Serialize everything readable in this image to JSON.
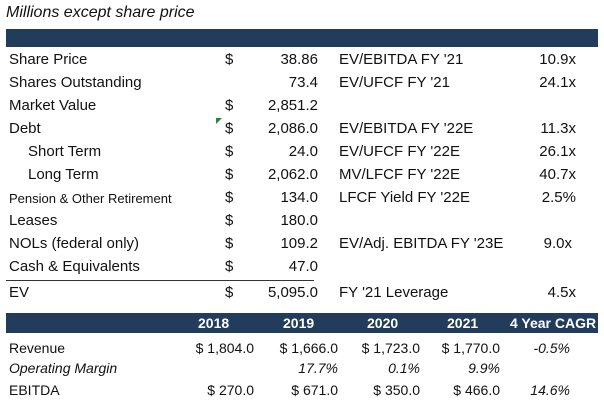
{
  "title": "Millions except share price",
  "left_rows": [
    {
      "label": "Share Price",
      "dollar": "$",
      "value": "38.86"
    },
    {
      "label": "Shares Outstanding",
      "dollar": "",
      "value": "73.4"
    },
    {
      "label": "Market Value",
      "dollar": "$",
      "value": "2,851.2"
    },
    {
      "label": "Debt",
      "dollar": "$",
      "value": "2,086.0"
    },
    {
      "label": "Short Term",
      "dollar": "$",
      "value": "24.0"
    },
    {
      "label": "Long Term",
      "dollar": "$",
      "value": "2,062.0"
    },
    {
      "label": "Pension & Other Retirement",
      "dollar": "$",
      "value": "134.0"
    },
    {
      "label": "Leases",
      "dollar": "$",
      "value": "180.0"
    },
    {
      "label": "NOLs (federal only)",
      "dollar": "$",
      "value": "109.2"
    },
    {
      "label": "Cash & Equivalents",
      "dollar": "$",
      "value": "47.0"
    },
    {
      "label": "EV",
      "dollar": "$",
      "value": "5,095.0"
    }
  ],
  "right_rows": [
    {
      "label": "EV/EBITDA FY '21",
      "value": "10.9x"
    },
    {
      "label": "EV/UFCF FY '21",
      "value": "24.1x"
    },
    {
      "label": "EV/EBITDA FY '22E",
      "value": "11.3x"
    },
    {
      "label": "EV/UFCF FY '22E",
      "value": "26.1x"
    },
    {
      "label": "MV/LFCF FY '22E",
      "value": "40.7x"
    },
    {
      "label": "LFCF Yield FY '22E",
      "value": "2.5%"
    },
    {
      "label": "EV/Adj. EBITDA FY '23E",
      "value": "9.0x"
    },
    {
      "label": "FY '21 Leverage",
      "value": "4.5x"
    }
  ],
  "table": {
    "headers": [
      "2018",
      "2019",
      "2020",
      "2021",
      "4 Year CAGR"
    ],
    "rows": [
      {
        "label": "Revenue",
        "cells": [
          "$ 1,804.0",
          "$ 1,666.0",
          "$ 1,723.0",
          "$ 1,770.0"
        ],
        "cagr": "-0.5%"
      },
      {
        "label": "Operating Margin",
        "cells": [
          "",
          "17.7%",
          "0.1%",
          "9.9%"
        ],
        "cagr": ""
      },
      {
        "label": "EBITDA",
        "cells": [
          "$ 270.0",
          "$ 671.0",
          "$ 350.0",
          "$ 466.0"
        ],
        "cagr": "14.6%"
      }
    ]
  },
  "colors": {
    "header_bg": "#223c5c",
    "flag": "#1f8a3a"
  }
}
